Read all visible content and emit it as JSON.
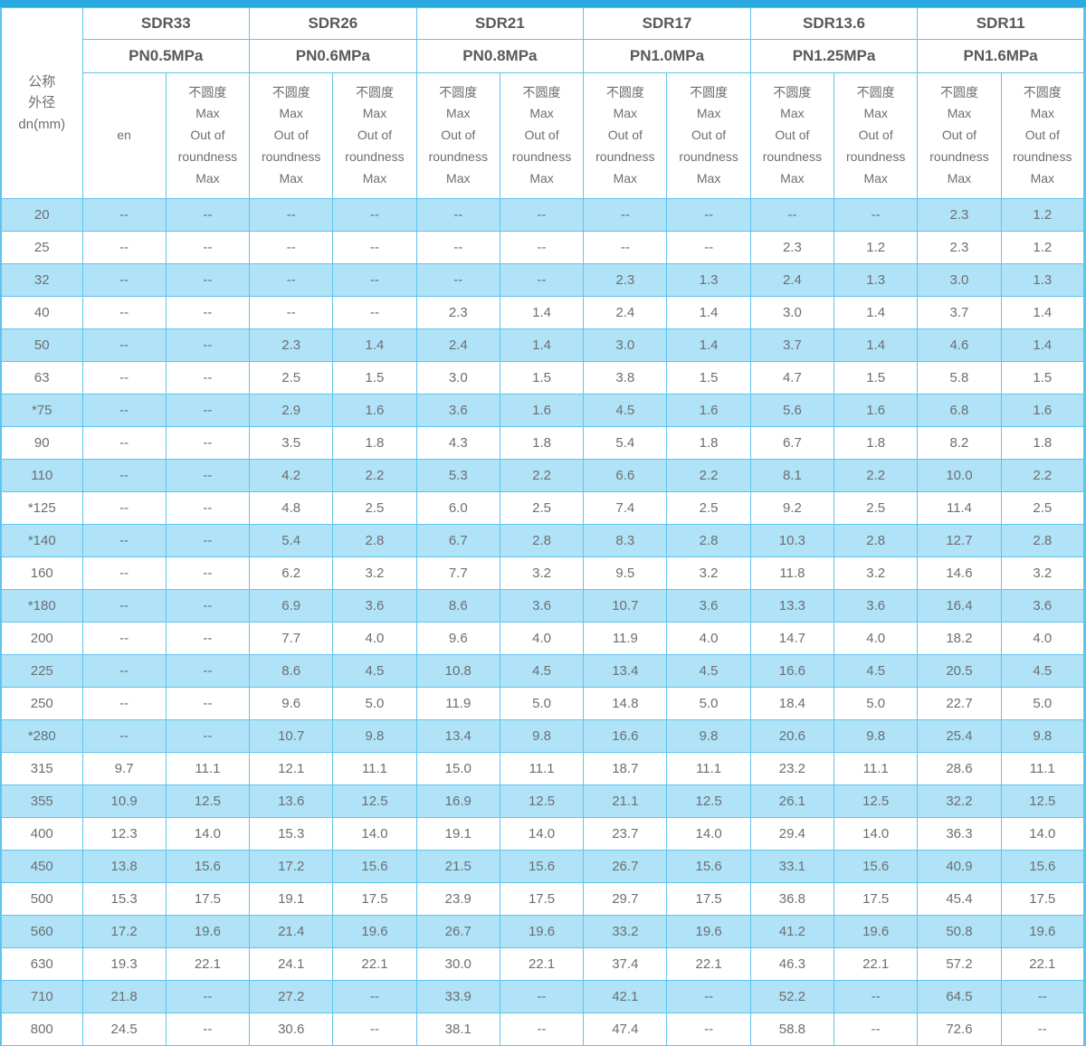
{
  "table": {
    "corner_header": "公称\n外径\ndn(mm)",
    "sub_roundness": "不圆度\nMax\nOut of\nroundness\nMax",
    "groups": [
      {
        "sdr": "SDR33",
        "pn": "PN0.5MPa",
        "sub": [
          "en",
          "不圆度\nMax\nOut of\nroundness\nMax"
        ]
      },
      {
        "sdr": "SDR26",
        "pn": "PN0.6MPa",
        "sub": [
          "不圆度\nMax\nOut of\nroundness\nMax",
          "不圆度\nMax\nOut of\nroundness\nMax"
        ]
      },
      {
        "sdr": "SDR21",
        "pn": "PN0.8MPa",
        "sub": [
          "不圆度\nMax\nOut of\nroundness\nMax",
          "不圆度\nMax\nOut of\nroundness\nMax"
        ]
      },
      {
        "sdr": "SDR17",
        "pn": "PN1.0MPa",
        "sub": [
          "不圆度\nMax\nOut of\nroundness\nMax",
          "不圆度\nMax\nOut of\nroundness\nMax"
        ]
      },
      {
        "sdr": "SDR13.6",
        "pn": "PN1.25MPa",
        "sub": [
          "不圆度\nMax\nOut of\nroundness\nMax",
          "不圆度\nMax\nOut of\nroundness\nMax"
        ]
      },
      {
        "sdr": "SDR11",
        "pn": "PN1.6MPa",
        "sub": [
          "不圆度\nMax\nOut of\nroundness\nMax",
          "不圆度\nMax\nOut of\nroundness\nMax"
        ]
      }
    ],
    "rows": [
      {
        "dn": "20",
        "values": [
          "--",
          "--",
          "--",
          "--",
          "--",
          "--",
          "--",
          "--",
          "--",
          "--",
          "2.3",
          "1.2"
        ]
      },
      {
        "dn": "25",
        "values": [
          "--",
          "--",
          "--",
          "--",
          "--",
          "--",
          "--",
          "--",
          "2.3",
          "1.2",
          "2.3",
          "1.2"
        ]
      },
      {
        "dn": "32",
        "values": [
          "--",
          "--",
          "--",
          "--",
          "--",
          "--",
          "2.3",
          "1.3",
          "2.4",
          "1.3",
          "3.0",
          "1.3"
        ]
      },
      {
        "dn": "40",
        "values": [
          "--",
          "--",
          "--",
          "--",
          "2.3",
          "1.4",
          "2.4",
          "1.4",
          "3.0",
          "1.4",
          "3.7",
          "1.4"
        ]
      },
      {
        "dn": "50",
        "values": [
          "--",
          "--",
          "2.3",
          "1.4",
          "2.4",
          "1.4",
          "3.0",
          "1.4",
          "3.7",
          "1.4",
          "4.6",
          "1.4"
        ]
      },
      {
        "dn": "63",
        "values": [
          "--",
          "--",
          "2.5",
          "1.5",
          "3.0",
          "1.5",
          "3.8",
          "1.5",
          "4.7",
          "1.5",
          "5.8",
          "1.5"
        ]
      },
      {
        "dn": "*75",
        "values": [
          "--",
          "--",
          "2.9",
          "1.6",
          "3.6",
          "1.6",
          "4.5",
          "1.6",
          "5.6",
          "1.6",
          "6.8",
          "1.6"
        ]
      },
      {
        "dn": "90",
        "values": [
          "--",
          "--",
          "3.5",
          "1.8",
          "4.3",
          "1.8",
          "5.4",
          "1.8",
          "6.7",
          "1.8",
          "8.2",
          "1.8"
        ]
      },
      {
        "dn": "110",
        "values": [
          "--",
          "--",
          "4.2",
          "2.2",
          "5.3",
          "2.2",
          "6.6",
          "2.2",
          "8.1",
          "2.2",
          "10.0",
          "2.2"
        ]
      },
      {
        "dn": "*125",
        "values": [
          "--",
          "--",
          "4.8",
          "2.5",
          "6.0",
          "2.5",
          "7.4",
          "2.5",
          "9.2",
          "2.5",
          "11.4",
          "2.5"
        ]
      },
      {
        "dn": "*140",
        "values": [
          "--",
          "--",
          "5.4",
          "2.8",
          "6.7",
          "2.8",
          "8.3",
          "2.8",
          "10.3",
          "2.8",
          "12.7",
          "2.8"
        ]
      },
      {
        "dn": "160",
        "values": [
          "--",
          "--",
          "6.2",
          "3.2",
          "7.7",
          "3.2",
          "9.5",
          "3.2",
          "11.8",
          "3.2",
          "14.6",
          "3.2"
        ]
      },
      {
        "dn": "*180",
        "values": [
          "--",
          "--",
          "6.9",
          "3.6",
          "8.6",
          "3.6",
          "10.7",
          "3.6",
          "13.3",
          "3.6",
          "16.4",
          "3.6"
        ]
      },
      {
        "dn": "200",
        "values": [
          "--",
          "--",
          "7.7",
          "4.0",
          "9.6",
          "4.0",
          "11.9",
          "4.0",
          "14.7",
          "4.0",
          "18.2",
          "4.0"
        ]
      },
      {
        "dn": "225",
        "values": [
          "--",
          "--",
          "8.6",
          "4.5",
          "10.8",
          "4.5",
          "13.4",
          "4.5",
          "16.6",
          "4.5",
          "20.5",
          "4.5"
        ]
      },
      {
        "dn": "250",
        "values": [
          "--",
          "--",
          "9.6",
          "5.0",
          "11.9",
          "5.0",
          "14.8",
          "5.0",
          "18.4",
          "5.0",
          "22.7",
          "5.0"
        ]
      },
      {
        "dn": "*280",
        "values": [
          "--",
          "--",
          "10.7",
          "9.8",
          "13.4",
          "9.8",
          "16.6",
          "9.8",
          "20.6",
          "9.8",
          "25.4",
          "9.8"
        ]
      },
      {
        "dn": "315",
        "values": [
          "9.7",
          "11.1",
          "12.1",
          "11.1",
          "15.0",
          "11.1",
          "18.7",
          "11.1",
          "23.2",
          "11.1",
          "28.6",
          "11.1"
        ]
      },
      {
        "dn": "355",
        "values": [
          "10.9",
          "12.5",
          "13.6",
          "12.5",
          "16.9",
          "12.5",
          "21.1",
          "12.5",
          "26.1",
          "12.5",
          "32.2",
          "12.5"
        ]
      },
      {
        "dn": "400",
        "values": [
          "12.3",
          "14.0",
          "15.3",
          "14.0",
          "19.1",
          "14.0",
          "23.7",
          "14.0",
          "29.4",
          "14.0",
          "36.3",
          "14.0"
        ]
      },
      {
        "dn": "450",
        "values": [
          "13.8",
          "15.6",
          "17.2",
          "15.6",
          "21.5",
          "15.6",
          "26.7",
          "15.6",
          "33.1",
          "15.6",
          "40.9",
          "15.6"
        ]
      },
      {
        "dn": "500",
        "values": [
          "15.3",
          "17.5",
          "19.1",
          "17.5",
          "23.9",
          "17.5",
          "29.7",
          "17.5",
          "36.8",
          "17.5",
          "45.4",
          "17.5"
        ]
      },
      {
        "dn": "560",
        "values": [
          "17.2",
          "19.6",
          "21.4",
          "19.6",
          "26.7",
          "19.6",
          "33.2",
          "19.6",
          "41.2",
          "19.6",
          "50.8",
          "19.6"
        ]
      },
      {
        "dn": "630",
        "values": [
          "19.3",
          "22.1",
          "24.1",
          "22.1",
          "30.0",
          "22.1",
          "37.4",
          "22.1",
          "46.3",
          "22.1",
          "57.2",
          "22.1"
        ]
      },
      {
        "dn": "710",
        "values": [
          "21.8",
          "--",
          "27.2",
          "--",
          "33.9",
          "--",
          "42.1",
          "--",
          "52.2",
          "--",
          "64.5",
          "--"
        ]
      },
      {
        "dn": "800",
        "values": [
          "24.5",
          "--",
          "30.6",
          "--",
          "38.1",
          "--",
          "47.4",
          "--",
          "58.8",
          "--",
          "72.6",
          "--"
        ]
      }
    ],
    "colors": {
      "accent_bar": "#29abe2",
      "grid_line": "#5fc3ed",
      "alt_row_fill": "#b0e3f8",
      "header_text": "#58595b",
      "body_text": "#6d6e70"
    }
  }
}
